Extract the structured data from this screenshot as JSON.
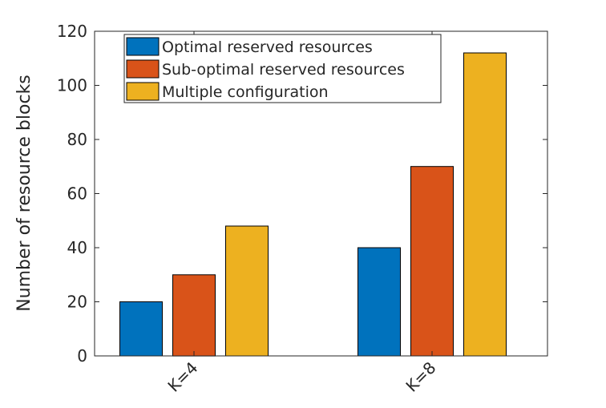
{
  "chart_data": {
    "type": "bar",
    "categories": [
      "K=4",
      "K=8"
    ],
    "series": [
      {
        "name": "Optimal reserved resources",
        "color": "#0072BD",
        "values": [
          20,
          40
        ]
      },
      {
        "name": "Sub-optimal reserved resources",
        "color": "#D95319",
        "values": [
          30,
          70
        ]
      },
      {
        "name": "Multiple configuration",
        "color": "#EDB120",
        "values": [
          48,
          112
        ]
      }
    ],
    "title": "",
    "xlabel": "",
    "ylabel": "Number of resource blocks",
    "ylim": [
      0,
      120
    ],
    "yticks": [
      0,
      20,
      40,
      60,
      80,
      100,
      120
    ],
    "grid": false,
    "legend_position": "top-left"
  }
}
